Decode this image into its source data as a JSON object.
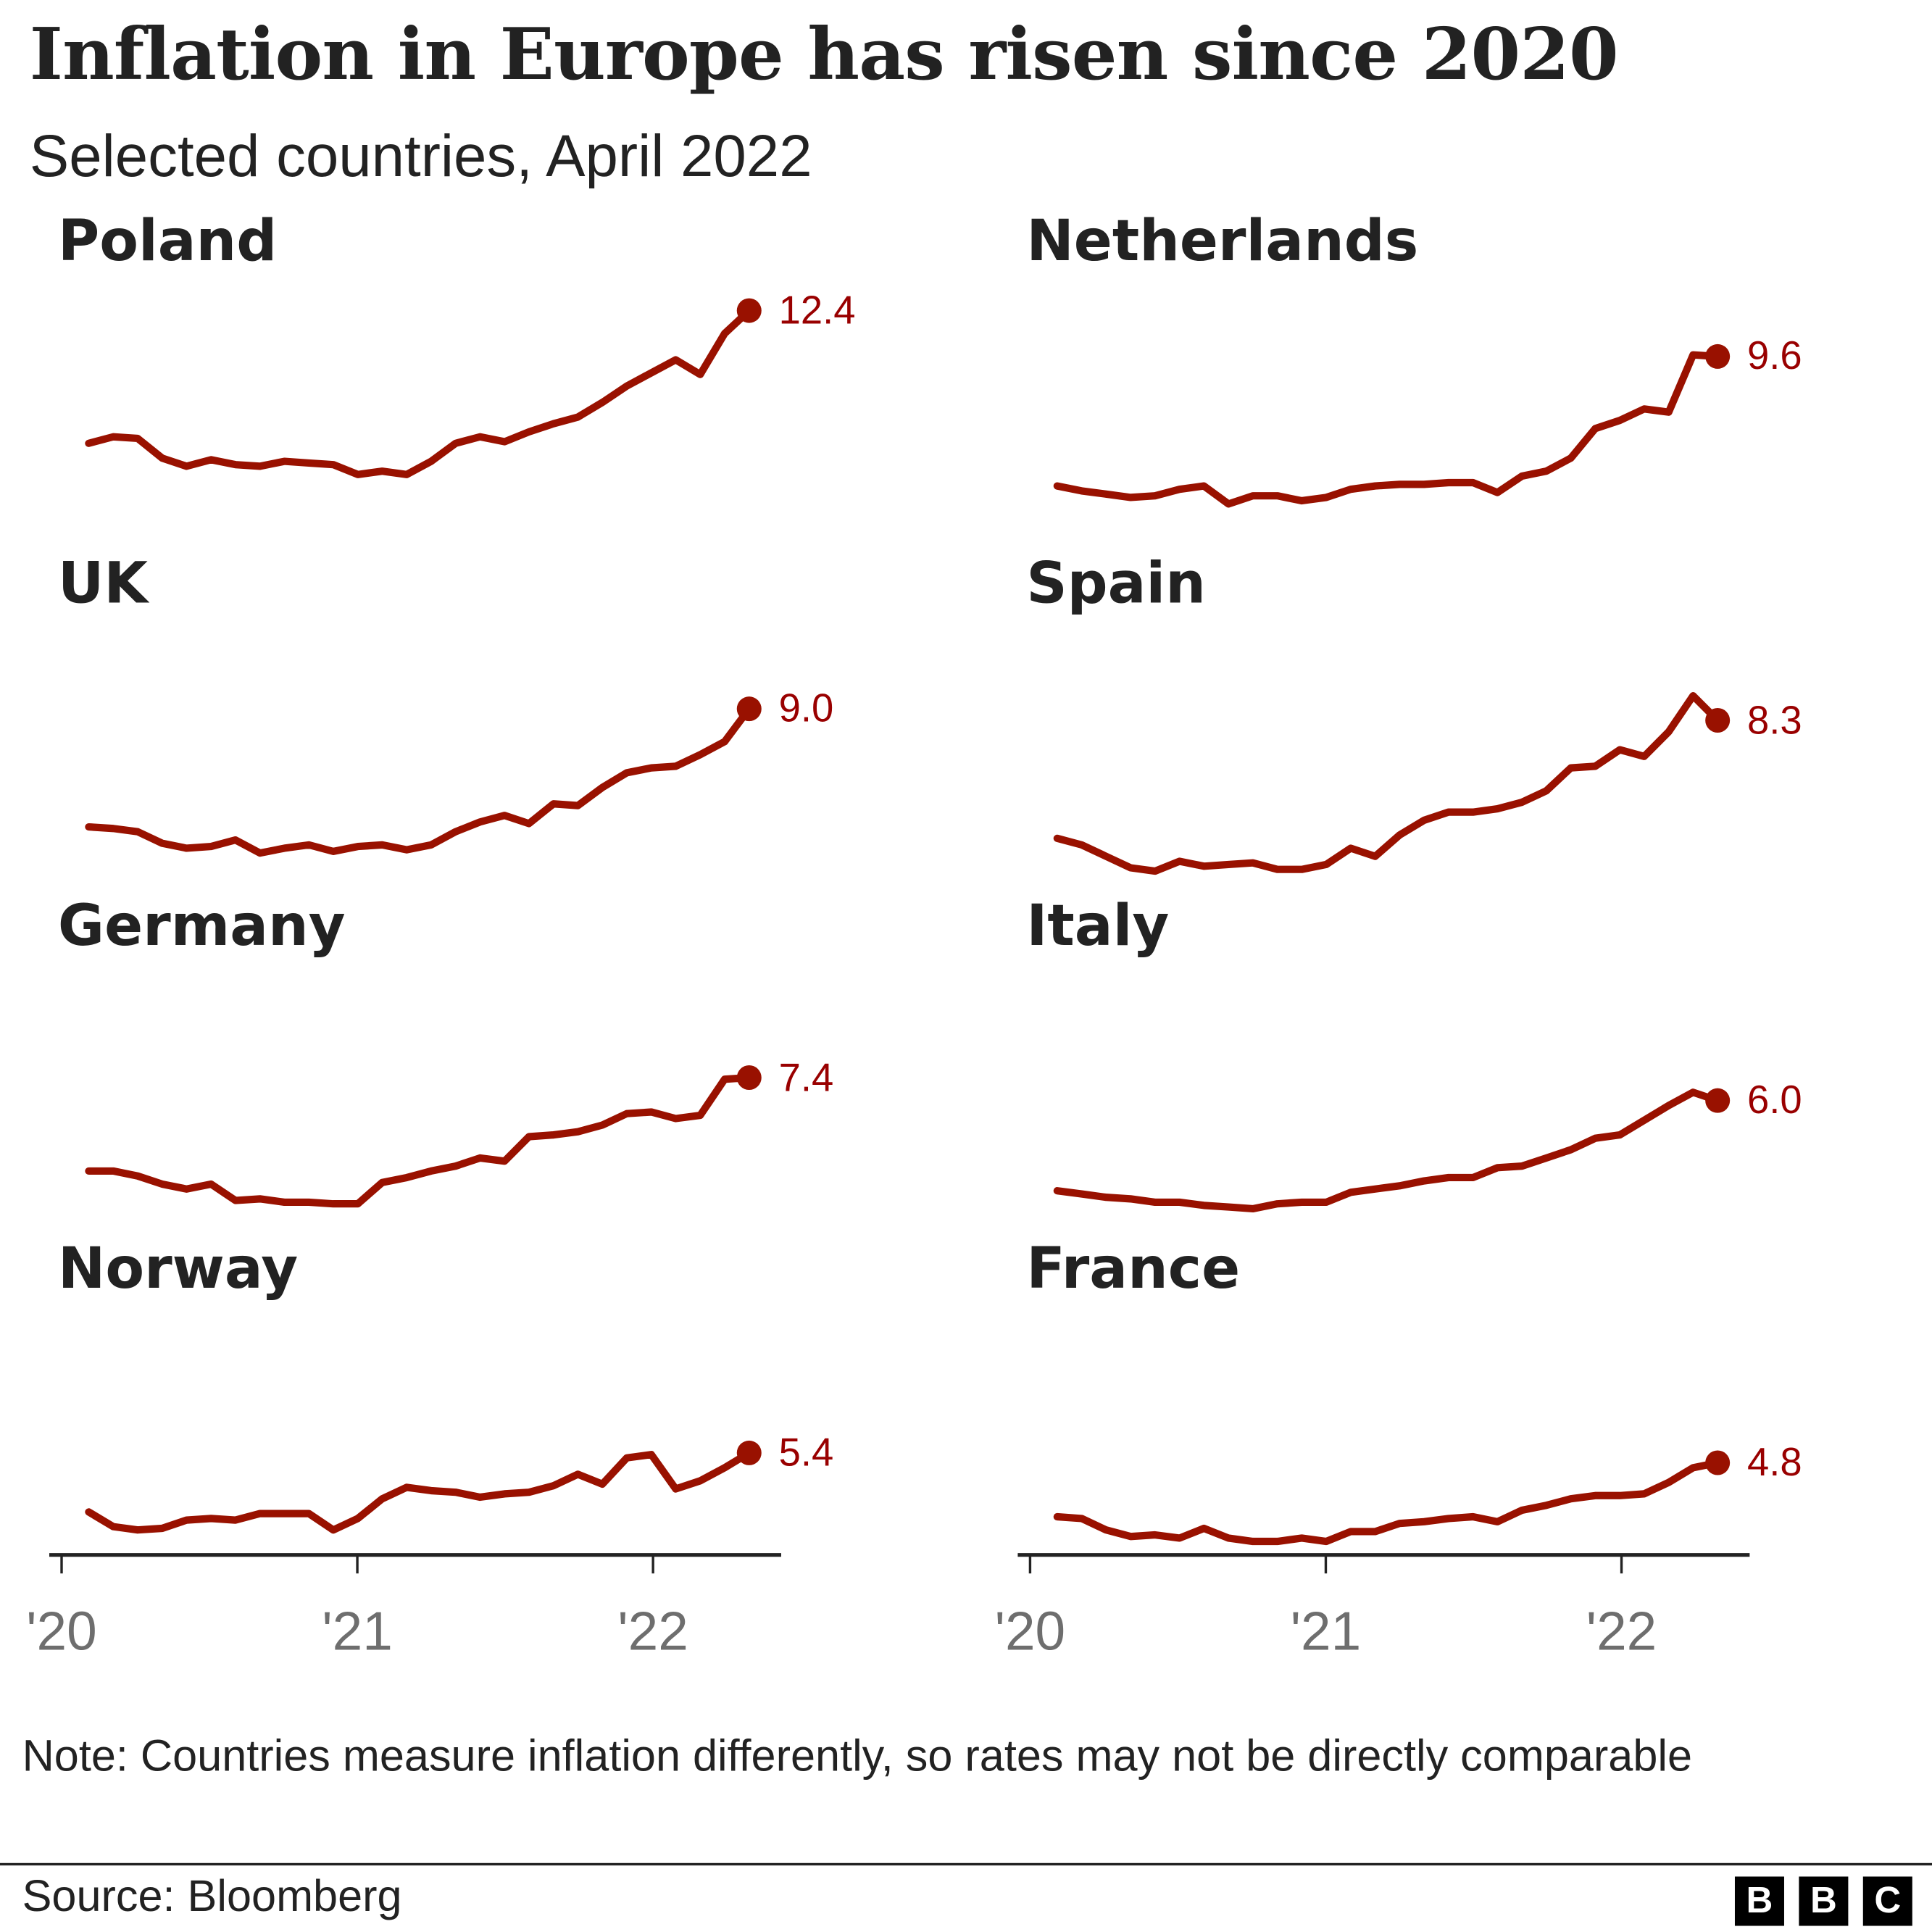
{
  "title": "Inflation in Europe has risen since 2020",
  "subtitle": "Selected countries, April 2022",
  "note": "Note: Countries measure inflation differently, so rates may not be directly comparable",
  "source": "Source: Bloomberg",
  "logo": [
    "B",
    "B",
    "C"
  ],
  "colors": {
    "line": "#991100",
    "text": "#222222",
    "axis_label": "#6e6e6e"
  },
  "chart_data": {
    "type": "line",
    "layout": "small-multiples",
    "x": [
      "2020-01",
      "2020-02",
      "2020-03",
      "2020-04",
      "2020-05",
      "2020-06",
      "2020-07",
      "2020-08",
      "2020-09",
      "2020-10",
      "2020-11",
      "2020-12",
      "2021-01",
      "2021-02",
      "2021-03",
      "2021-04",
      "2021-05",
      "2021-06",
      "2021-07",
      "2021-08",
      "2021-09",
      "2021-10",
      "2021-11",
      "2021-12",
      "2022-01",
      "2022-02",
      "2022-03",
      "2022-04"
    ],
    "x_tick_labels": [
      "'20",
      "'21",
      "'22"
    ],
    "shared_y_scale": true,
    "grid": false,
    "panels": [
      {
        "name": "Poland",
        "last_label": "12.4",
        "values": [
          4.3,
          4.7,
          4.6,
          3.4,
          2.9,
          3.3,
          3.0,
          2.9,
          3.2,
          3.1,
          3.0,
          2.4,
          2.6,
          2.4,
          3.2,
          4.3,
          4.7,
          4.4,
          5.0,
          5.5,
          5.9,
          6.8,
          7.8,
          8.6,
          9.4,
          8.5,
          11.0,
          12.4
        ]
      },
      {
        "name": "Netherlands",
        "last_label": "9.6",
        "values": [
          1.7,
          1.4,
          1.2,
          1.0,
          1.1,
          1.5,
          1.7,
          0.6,
          1.1,
          1.1,
          0.8,
          1.0,
          1.5,
          1.7,
          1.8,
          1.8,
          1.9,
          1.9,
          1.3,
          2.3,
          2.6,
          3.4,
          5.2,
          5.7,
          6.4,
          6.2,
          9.7,
          9.6
        ]
      },
      {
        "name": "UK",
        "last_label": "9.0",
        "values": [
          1.8,
          1.7,
          1.5,
          0.8,
          0.5,
          0.6,
          1.0,
          0.2,
          0.5,
          0.7,
          0.3,
          0.6,
          0.7,
          0.4,
          0.7,
          1.5,
          2.1,
          2.5,
          2.0,
          3.2,
          3.1,
          4.2,
          5.1,
          5.4,
          5.5,
          6.2,
          7.0,
          9.0
        ]
      },
      {
        "name": "Spain",
        "last_label": "8.3",
        "values": [
          1.1,
          0.7,
          0.0,
          -0.7,
          -0.9,
          -0.3,
          -0.6,
          -0.5,
          -0.4,
          -0.8,
          -0.8,
          -0.5,
          0.5,
          0.0,
          1.3,
          2.2,
          2.7,
          2.7,
          2.9,
          3.3,
          4.0,
          5.4,
          5.5,
          6.5,
          6.1,
          7.6,
          9.8,
          8.3
        ]
      },
      {
        "name": "Germany",
        "last_label": "7.4",
        "values": [
          1.7,
          1.7,
          1.4,
          0.9,
          0.6,
          0.9,
          -0.1,
          0.0,
          -0.2,
          -0.2,
          -0.3,
          -0.3,
          1.0,
          1.3,
          1.7,
          2.0,
          2.5,
          2.3,
          3.8,
          3.9,
          4.1,
          4.5,
          5.2,
          5.3,
          4.9,
          5.1,
          7.3,
          7.4
        ]
      },
      {
        "name": "Italy",
        "last_label": "6.0",
        "values": [
          0.5,
          0.3,
          0.1,
          0.0,
          -0.2,
          -0.2,
          -0.4,
          -0.5,
          -0.6,
          -0.3,
          -0.2,
          -0.2,
          0.4,
          0.6,
          0.8,
          1.1,
          1.3,
          1.3,
          1.9,
          2.0,
          2.5,
          3.0,
          3.7,
          3.9,
          4.8,
          5.7,
          6.5,
          6.0
        ]
      },
      {
        "name": "Norway",
        "last_label": "5.4",
        "values": [
          1.8,
          0.9,
          0.7,
          0.8,
          1.3,
          1.4,
          1.3,
          1.7,
          1.7,
          1.7,
          0.7,
          1.4,
          2.6,
          3.3,
          3.1,
          3.0,
          2.7,
          2.9,
          3.0,
          3.4,
          4.1,
          3.5,
          5.1,
          5.3,
          3.2,
          3.7,
          4.5,
          5.4
        ]
      },
      {
        "name": "France",
        "last_label": "4.8",
        "values": [
          1.5,
          1.4,
          0.7,
          0.3,
          0.4,
          0.2,
          0.8,
          0.2,
          0.0,
          0.0,
          0.2,
          0.0,
          0.6,
          0.6,
          1.1,
          1.2,
          1.4,
          1.5,
          1.2,
          1.9,
          2.2,
          2.6,
          2.8,
          2.8,
          2.9,
          3.6,
          4.5,
          4.8
        ]
      }
    ]
  }
}
